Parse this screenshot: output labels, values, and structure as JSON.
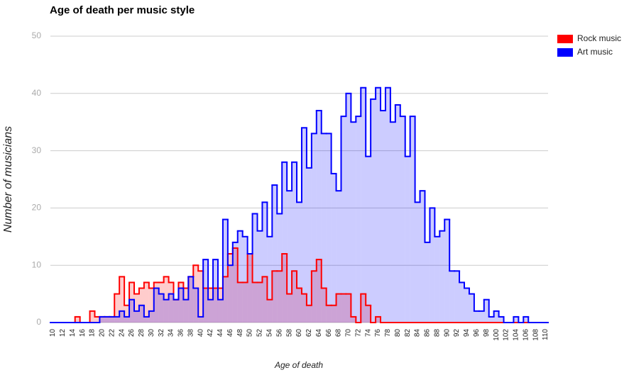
{
  "chart_data": {
    "type": "stepped-area",
    "title": "Age of death per music style",
    "x_label": "Age of death",
    "y_label": "Number of musicians",
    "x": [
      10,
      11,
      12,
      13,
      14,
      15,
      16,
      17,
      18,
      19,
      20,
      21,
      22,
      23,
      24,
      25,
      26,
      27,
      28,
      29,
      30,
      31,
      32,
      33,
      34,
      35,
      36,
      37,
      38,
      39,
      40,
      41,
      42,
      43,
      44,
      45,
      46,
      47,
      48,
      49,
      50,
      51,
      52,
      53,
      54,
      55,
      56,
      57,
      58,
      59,
      60,
      61,
      62,
      63,
      64,
      65,
      66,
      67,
      68,
      69,
      70,
      71,
      72,
      73,
      74,
      75,
      76,
      77,
      78,
      79,
      80,
      81,
      82,
      83,
      84,
      85,
      86,
      87,
      88,
      89,
      90,
      91,
      92,
      93,
      94,
      95,
      96,
      97,
      98,
      99,
      100,
      101,
      102,
      103,
      104,
      105,
      106,
      107,
      108,
      109,
      110
    ],
    "series": [
      {
        "name": "Rock music",
        "color": "#ff0000",
        "values": [
          0,
          0,
          0,
          0,
          0,
          1,
          0,
          0,
          2,
          1,
          1,
          1,
          1,
          5,
          8,
          3,
          7,
          5,
          6,
          7,
          6,
          7,
          7,
          8,
          7,
          4,
          7,
          6,
          8,
          10,
          9,
          6,
          6,
          6,
          6,
          8,
          12,
          13,
          7,
          7,
          12,
          7,
          7,
          8,
          4,
          9,
          9,
          12,
          5,
          9,
          6,
          5,
          3,
          9,
          11,
          6,
          3,
          3,
          5,
          5,
          5,
          1,
          0,
          5,
          3,
          0,
          1,
          0,
          0,
          0,
          0,
          0,
          0,
          0,
          0,
          0,
          0,
          0,
          0,
          0,
          0,
          0,
          0,
          0,
          0,
          0,
          0,
          0,
          0,
          0,
          0,
          0,
          0,
          0,
          0,
          0,
          0,
          0,
          0,
          0,
          0
        ]
      },
      {
        "name": "Art music",
        "color": "#0000ff",
        "values": [
          0,
          0,
          0,
          0,
          0,
          0,
          0,
          0,
          0,
          0,
          1,
          1,
          1,
          1,
          2,
          1,
          4,
          2,
          3,
          1,
          2,
          6,
          5,
          4,
          5,
          4,
          6,
          4,
          8,
          6,
          1,
          11,
          4,
          11,
          4,
          18,
          10,
          14,
          16,
          15,
          12,
          19,
          16,
          21,
          15,
          24,
          19,
          28,
          23,
          28,
          21,
          34,
          27,
          33,
          37,
          33,
          33,
          26,
          23,
          36,
          40,
          35,
          36,
          41,
          29,
          39,
          41,
          37,
          41,
          35,
          38,
          36,
          29,
          36,
          21,
          23,
          14,
          20,
          15,
          16,
          18,
          9,
          9,
          7,
          6,
          5,
          2,
          2,
          4,
          1,
          2,
          1,
          0,
          0,
          1,
          0,
          1,
          0,
          0,
          0,
          0
        ]
      }
    ],
    "xlim": [
      9.5,
      110.5
    ],
    "xticks": [
      10,
      12,
      14,
      16,
      18,
      20,
      22,
      24,
      26,
      28,
      30,
      32,
      34,
      36,
      38,
      40,
      42,
      44,
      46,
      48,
      50,
      52,
      54,
      56,
      58,
      60,
      62,
      64,
      66,
      68,
      70,
      72,
      74,
      76,
      78,
      80,
      82,
      84,
      86,
      88,
      90,
      92,
      94,
      96,
      98,
      100,
      102,
      104,
      106,
      108,
      110
    ],
    "ylim": [
      0,
      50
    ],
    "yticks": [
      0,
      10,
      20,
      30,
      40,
      50
    ],
    "grid": true,
    "legend": "right"
  }
}
